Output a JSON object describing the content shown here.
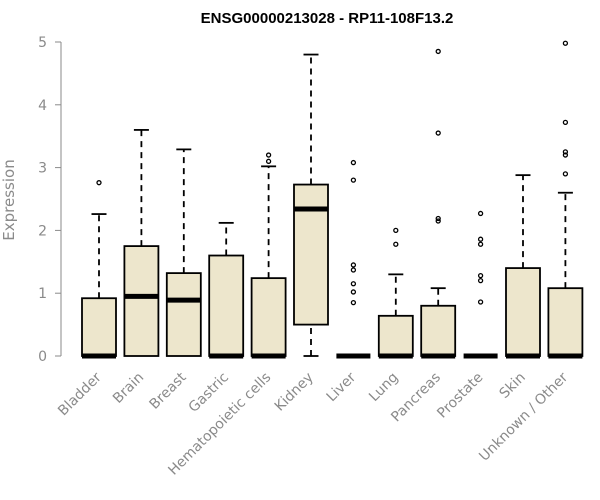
{
  "chart_data": {
    "type": "box",
    "title": "ENSG00000213028 - RP11-108F13.2",
    "xlabel": "",
    "ylabel": "Expression",
    "ylim": [
      0,
      5
    ],
    "yticks": [
      0,
      1,
      2,
      3,
      4,
      5
    ],
    "box_fill": "#ede6cc",
    "axis_color": "#8a8a8a",
    "categories": [
      "Bladder",
      "Brain",
      "Breast",
      "Gastric",
      "Hematopoietic cells",
      "Kidney",
      "Liver",
      "Lung",
      "Pancreas",
      "Prostate",
      "Skin",
      "Unknown / Other"
    ],
    "boxes": [
      {
        "min": 0,
        "q1": 0,
        "median": 0,
        "q3": 0.92,
        "max": 2.26,
        "outliers": [
          2.76
        ]
      },
      {
        "min": 0,
        "q1": 0,
        "median": 0.95,
        "q3": 1.75,
        "max": 3.6,
        "outliers": []
      },
      {
        "min": 0,
        "q1": 0,
        "median": 0.89,
        "q3": 1.32,
        "max": 3.29,
        "outliers": []
      },
      {
        "min": 0,
        "q1": 0,
        "median": 0,
        "q3": 1.6,
        "max": 2.12,
        "outliers": []
      },
      {
        "min": 0,
        "q1": 0,
        "median": 0,
        "q3": 1.24,
        "max": 3.02,
        "outliers": [
          3.1,
          3.2
        ]
      },
      {
        "min": 0,
        "q1": 0.5,
        "median": 2.34,
        "q3": 2.73,
        "max": 4.8,
        "outliers": []
      },
      {
        "min": 0,
        "q1": 0,
        "median": 0,
        "q3": 0,
        "max": 0,
        "outliers": [
          0.85,
          1.02,
          1.15,
          1.37,
          1.45,
          2.8,
          3.08
        ]
      },
      {
        "min": 0,
        "q1": 0,
        "median": 0,
        "q3": 0.64,
        "max": 1.3,
        "outliers": [
          1.78,
          2.0
        ]
      },
      {
        "min": 0,
        "q1": 0,
        "median": 0,
        "q3": 0.8,
        "max": 1.08,
        "outliers": [
          2.15,
          2.19,
          3.55,
          4.85
        ]
      },
      {
        "min": 0,
        "q1": 0,
        "median": 0,
        "q3": 0,
        "max": 0,
        "outliers": [
          0.86,
          1.2,
          1.28,
          1.78,
          1.86,
          2.27
        ]
      },
      {
        "min": 0,
        "q1": 0,
        "median": 0,
        "q3": 1.4,
        "max": 2.88,
        "outliers": []
      },
      {
        "min": 0,
        "q1": 0,
        "median": 0,
        "q3": 1.08,
        "max": 2.6,
        "outliers": [
          2.9,
          3.2,
          3.25,
          3.72,
          4.98
        ]
      }
    ]
  }
}
